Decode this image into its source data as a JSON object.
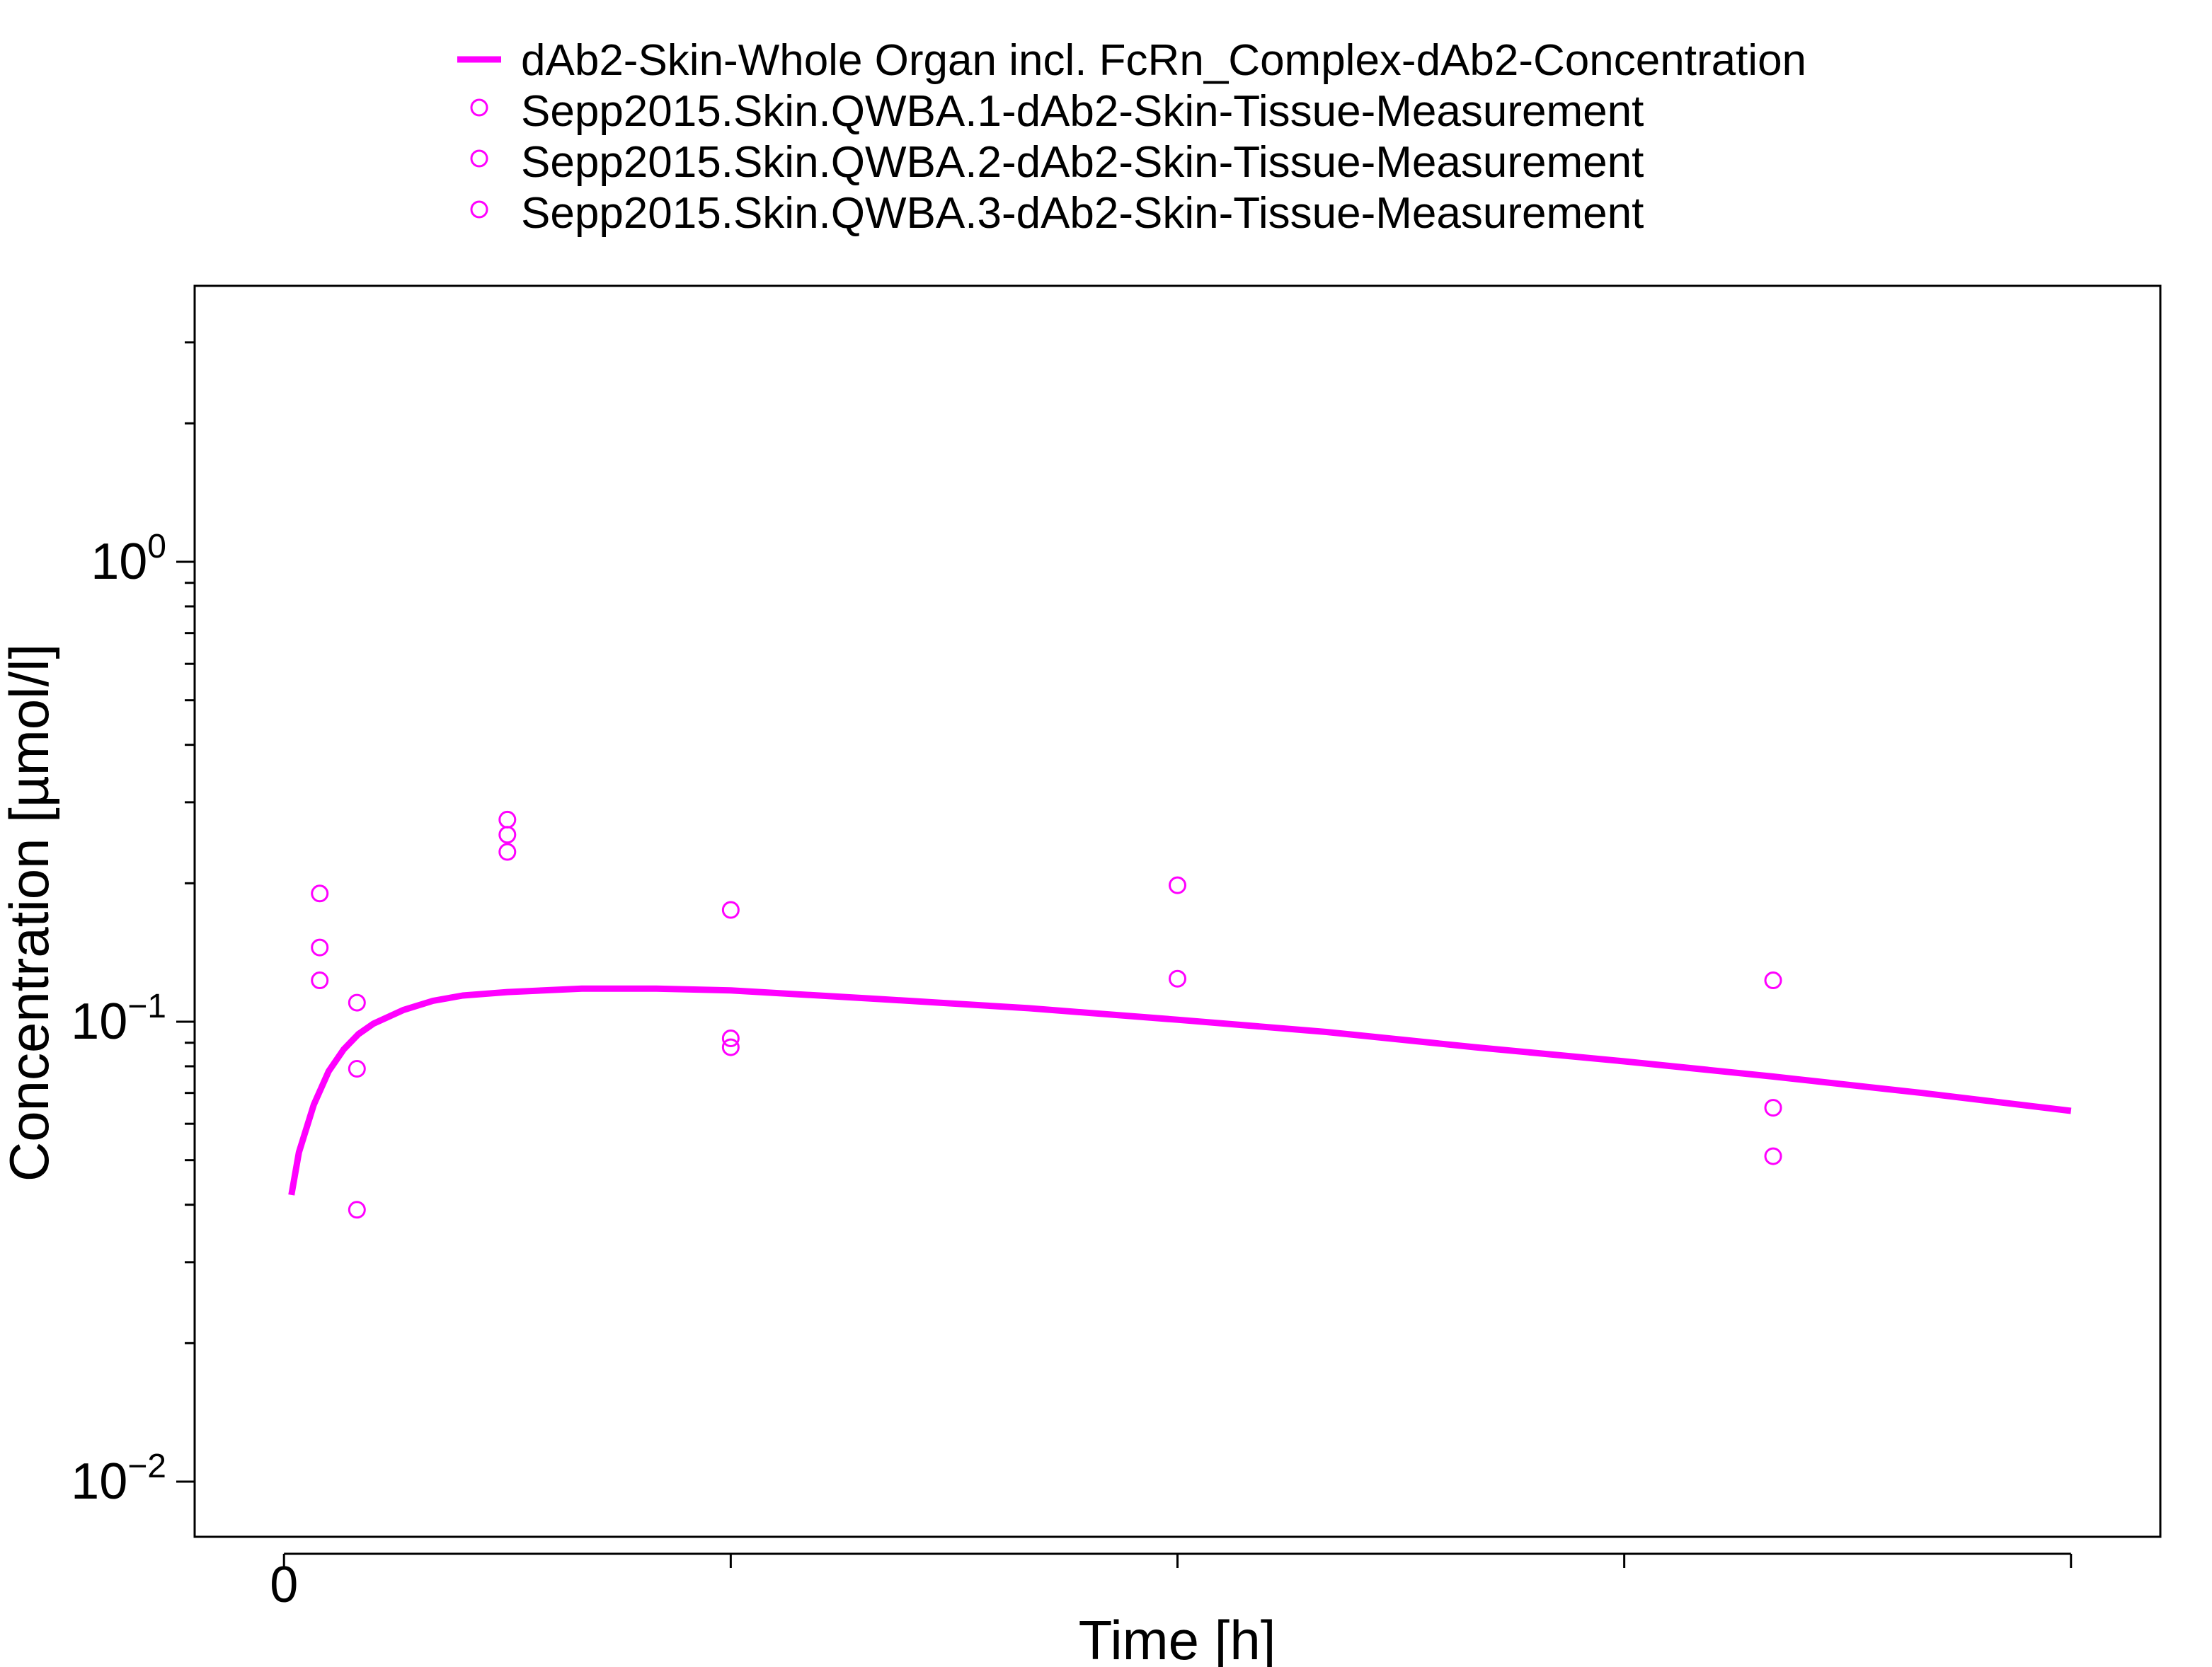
{
  "chart_data": {
    "type": "scatter",
    "title": "",
    "xlabel": "Time [h]",
    "ylabel": "Concentration [µmol/l]",
    "y_scale": "log10",
    "xlim": [
      -6,
      126
    ],
    "ylim_log10": [
      -2.12,
      0.6
    ],
    "x_ticks": [
      0,
      30,
      60,
      90,
      120
    ],
    "x_tick_labels": [
      "0",
      "",
      "",
      "",
      ""
    ],
    "y_major_ticks": [
      {
        "value": 1,
        "base": "10",
        "exp": "0"
      },
      {
        "value": 0.1,
        "base": "10",
        "exp": "−1"
      },
      {
        "value": 0.01,
        "base": "10",
        "exp": "−2"
      }
    ],
    "y_minor_ticks": [
      0.02,
      0.03,
      0.04,
      0.05,
      0.06,
      0.07,
      0.08,
      0.09,
      0.2,
      0.3,
      0.4,
      0.5,
      0.6,
      0.7,
      0.8,
      0.9,
      2,
      3
    ],
    "grid": false,
    "legend_position": "top-center",
    "series": [
      {
        "name": "dAb2-Skin-Whole Organ incl. FcRn_Complex-dAb2-Concentration",
        "kind": "line",
        "color": "#ff00ff",
        "x": [
          0.5,
          1,
          2,
          3,
          4,
          5,
          6,
          8,
          10,
          12,
          15,
          20,
          25,
          30,
          40,
          50,
          60,
          70,
          80,
          90,
          100,
          110,
          120
        ],
        "y": [
          0.042,
          0.052,
          0.066,
          0.078,
          0.087,
          0.094,
          0.099,
          0.106,
          0.111,
          0.114,
          0.116,
          0.118,
          0.118,
          0.117,
          0.112,
          0.107,
          0.101,
          0.095,
          0.088,
          0.082,
          0.076,
          0.07,
          0.064
        ]
      },
      {
        "name": "Sepp2015.Skin.QWBA.1-dAb2-Skin-Tissue-Measurement",
        "kind": "scatter",
        "color": "#ff00ff",
        "x": [
          2.4,
          4.9,
          15,
          30,
          60,
          100
        ],
        "y": [
          0.19,
          0.11,
          0.275,
          0.175,
          0.198,
          0.123
        ]
      },
      {
        "name": "Sepp2015.Skin.QWBA.2-dAb2-Skin-Tissue-Measurement",
        "kind": "scatter",
        "color": "#ff00ff",
        "x": [
          2.4,
          4.9,
          15,
          30,
          60,
          100
        ],
        "y": [
          0.145,
          0.079,
          0.255,
          0.092,
          0.124,
          0.065
        ]
      },
      {
        "name": "Sepp2015.Skin.QWBA.3-dAb2-Skin-Tissue-Measurement",
        "kind": "scatter",
        "color": "#ff00ff",
        "x": [
          2.4,
          4.9,
          15,
          30,
          100
        ],
        "y": [
          0.123,
          0.039,
          0.234,
          0.088,
          0.051
        ]
      }
    ]
  }
}
